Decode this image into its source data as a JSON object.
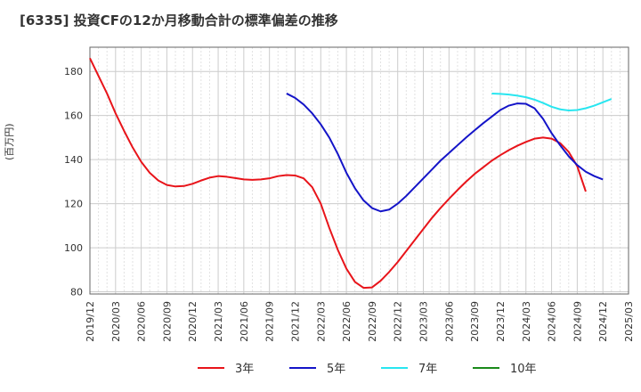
{
  "chart_data": {
    "type": "line",
    "title": "[6335]  投資CFの12か月移動合計の標準偏差の推移",
    "ylabel": "(百万円)",
    "xlabel": "",
    "ylim": [
      79,
      191
    ],
    "yticks": [
      80,
      100,
      120,
      140,
      160,
      180
    ],
    "x_tick_labels": [
      "2019/12",
      "2020/03",
      "2020/06",
      "2020/09",
      "2020/12",
      "2021/03",
      "2021/06",
      "2021/09",
      "2021/12",
      "2022/03",
      "2022/06",
      "2022/09",
      "2022/12",
      "2023/03",
      "2023/06",
      "2023/09",
      "2023/12",
      "2024/03",
      "2024/06",
      "2024/09",
      "2024/12",
      "2025/03"
    ],
    "grid": true,
    "legend_position": "bottom",
    "colors": {
      "3年": "#e8141a",
      "5年": "#1414c8",
      "7年": "#28e6f0",
      "10年": "#1a8a1a"
    },
    "series": [
      {
        "name": "3年",
        "points": [
          [
            "2019/12",
            186
          ],
          [
            "2020/01",
            178
          ],
          [
            "2020/02",
            170
          ],
          [
            "2020/03",
            161
          ],
          [
            "2020/04",
            153
          ],
          [
            "2020/05",
            145.5
          ],
          [
            "2020/06",
            139
          ],
          [
            "2020/07",
            134
          ],
          [
            "2020/08",
            130.5
          ],
          [
            "2020/09",
            128.5
          ],
          [
            "2020/10",
            127.8
          ],
          [
            "2020/11",
            128
          ],
          [
            "2020/12",
            129
          ],
          [
            "2021/01",
            130.5
          ],
          [
            "2021/02",
            131.8
          ],
          [
            "2021/03",
            132.5
          ],
          [
            "2021/04",
            132.2
          ],
          [
            "2021/05",
            131.6
          ],
          [
            "2021/06",
            131
          ],
          [
            "2021/07",
            130.8
          ],
          [
            "2021/08",
            131
          ],
          [
            "2021/09",
            131.5
          ],
          [
            "2021/10",
            132.5
          ],
          [
            "2021/11",
            133
          ],
          [
            "2021/12",
            132.8
          ],
          [
            "2022/01",
            131.5
          ],
          [
            "2022/02",
            127.5
          ],
          [
            "2022/03",
            120
          ],
          [
            "2022/04",
            109
          ],
          [
            "2022/05",
            99
          ],
          [
            "2022/06",
            90.5
          ],
          [
            "2022/07",
            84.5
          ],
          [
            "2022/08",
            81.8
          ],
          [
            "2022/09",
            82
          ],
          [
            "2022/10",
            85
          ],
          [
            "2022/11",
            89
          ],
          [
            "2022/12",
            93.5
          ],
          [
            "2023/01",
            98.5
          ],
          [
            "2023/02",
            103.5
          ],
          [
            "2023/03",
            108.5
          ],
          [
            "2023/04",
            113.5
          ],
          [
            "2023/05",
            118
          ],
          [
            "2023/06",
            122.2
          ],
          [
            "2023/07",
            126.2
          ],
          [
            "2023/08",
            130
          ],
          [
            "2023/09",
            133.5
          ],
          [
            "2023/10",
            136.5
          ],
          [
            "2023/11",
            139.5
          ],
          [
            "2023/12",
            142
          ],
          [
            "2024/01",
            144.3
          ],
          [
            "2024/02",
            146.3
          ],
          [
            "2024/03",
            148
          ],
          [
            "2024/04",
            149.5
          ],
          [
            "2024/05",
            150
          ],
          [
            "2024/06",
            149.5
          ],
          [
            "2024/07",
            147.5
          ],
          [
            "2024/08",
            143.5
          ],
          [
            "2024/09",
            137
          ],
          [
            "2024/10",
            125.5
          ]
        ]
      },
      {
        "name": "5年",
        "points": [
          [
            "2021/11",
            170
          ],
          [
            "2021/12",
            168
          ],
          [
            "2022/01",
            165
          ],
          [
            "2022/02",
            161
          ],
          [
            "2022/03",
            156
          ],
          [
            "2022/04",
            150
          ],
          [
            "2022/05",
            142.5
          ],
          [
            "2022/06",
            134
          ],
          [
            "2022/07",
            127
          ],
          [
            "2022/08",
            121.5
          ],
          [
            "2022/09",
            118
          ],
          [
            "2022/10",
            116.5
          ],
          [
            "2022/11",
            117.3
          ],
          [
            "2022/12",
            120
          ],
          [
            "2023/01",
            123.5
          ],
          [
            "2023/02",
            127.5
          ],
          [
            "2023/03",
            131.5
          ],
          [
            "2023/04",
            135.5
          ],
          [
            "2023/05",
            139.5
          ],
          [
            "2023/06",
            143
          ],
          [
            "2023/07",
            146.5
          ],
          [
            "2023/08",
            150
          ],
          [
            "2023/09",
            153.3
          ],
          [
            "2023/10",
            156.5
          ],
          [
            "2023/11",
            159.5
          ],
          [
            "2023/12",
            162.5
          ],
          [
            "2024/01",
            164.5
          ],
          [
            "2024/02",
            165.5
          ],
          [
            "2024/03",
            165.3
          ],
          [
            "2024/04",
            163.3
          ],
          [
            "2024/05",
            158.5
          ],
          [
            "2024/06",
            152
          ],
          [
            "2024/07",
            146.5
          ],
          [
            "2024/08",
            141.5
          ],
          [
            "2024/09",
            137.5
          ],
          [
            "2024/10",
            134.5
          ],
          [
            "2024/11",
            132.5
          ],
          [
            "2024/12",
            131
          ]
        ]
      },
      {
        "name": "7年",
        "points": [
          [
            "2023/11",
            170
          ],
          [
            "2023/12",
            169.8
          ],
          [
            "2024/01",
            169.5
          ],
          [
            "2024/02",
            169
          ],
          [
            "2024/03",
            168.3
          ],
          [
            "2024/04",
            167.2
          ],
          [
            "2024/05",
            165.7
          ],
          [
            "2024/06",
            164
          ],
          [
            "2024/07",
            162.8
          ],
          [
            "2024/08",
            162.3
          ],
          [
            "2024/09",
            162.5
          ],
          [
            "2024/10",
            163.3
          ],
          [
            "2024/11",
            164.5
          ],
          [
            "2024/12",
            166
          ],
          [
            "2025/01",
            167.5
          ]
        ]
      },
      {
        "name": "10年",
        "points": []
      }
    ]
  }
}
